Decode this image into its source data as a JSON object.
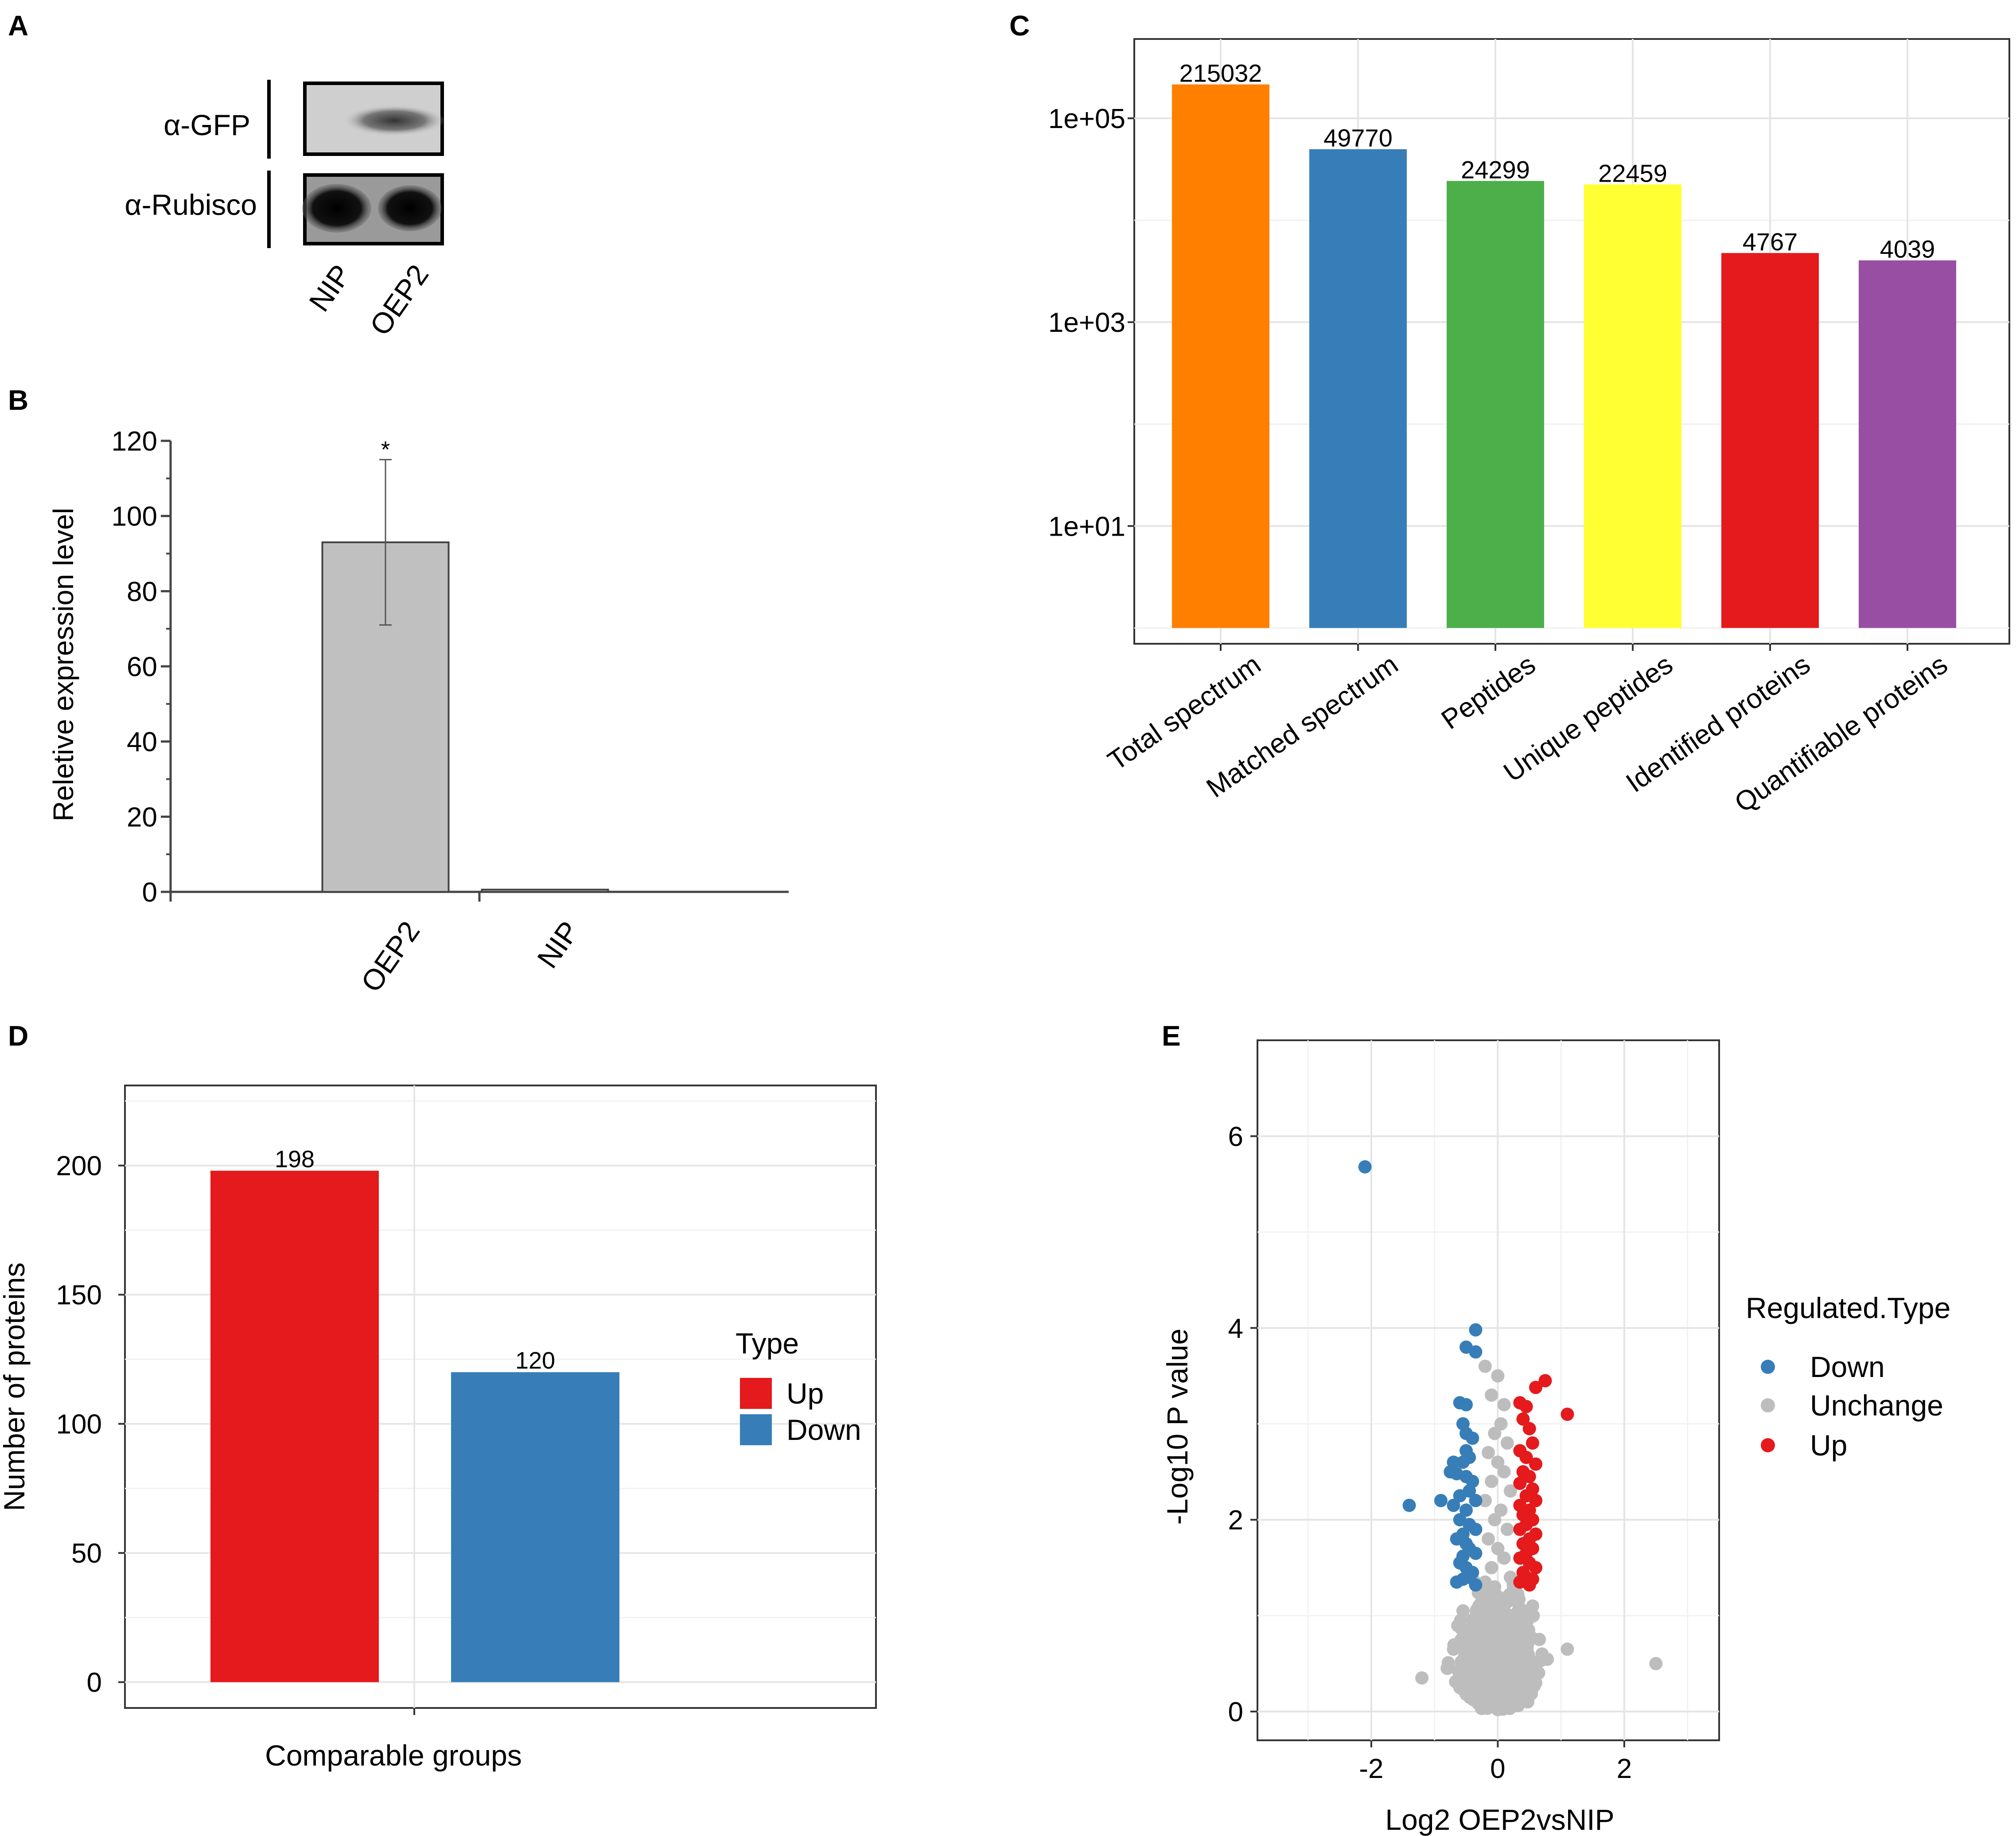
{
  "panel_labels": {
    "a": "A",
    "b": "B",
    "c": "C",
    "d": "D",
    "e": "E"
  },
  "colors": {
    "orange": "#ff7f00",
    "blue": "#377eb8",
    "green": "#4daf4a",
    "yellow": "#ffff33",
    "red": "#e41a1c",
    "purple": "#984ea3",
    "grey_bar": "#c0c0c0",
    "grey_point": "#bdbdbd"
  },
  "blot": {
    "rows": [
      "α-GFP",
      "α-Rubisco"
    ],
    "lanes": [
      "NIP",
      "OEP2"
    ]
  },
  "chart_data": [
    {
      "panel": "B",
      "type": "bar",
      "categories": [
        "OEP2",
        "NIP"
      ],
      "values": [
        93,
        0.6
      ],
      "error": [
        22,
        0
      ],
      "significance": [
        "*",
        ""
      ],
      "title": "",
      "xlabel": "",
      "ylabel": "Reletive expression level",
      "ylim": [
        0,
        120
      ],
      "yticks": [
        0,
        20,
        40,
        60,
        80,
        100,
        120
      ]
    },
    {
      "panel": "C",
      "type": "bar",
      "scale": "log10",
      "categories": [
        "Total spectrum",
        "Matched spectrum",
        "Peptides",
        "Unique peptides",
        "Identified proteins",
        "Quantifiable proteins"
      ],
      "values": [
        215032,
        49770,
        24299,
        22459,
        4767,
        4039
      ],
      "labels": [
        "215032",
        "49770",
        "24299",
        "22459",
        "4767",
        "4039"
      ],
      "colors": [
        "#ff7f00",
        "#377eb8",
        "#4daf4a",
        "#ffff33",
        "#e41a1c",
        "#984ea3"
      ],
      "yticks": [
        10,
        1000,
        100000
      ],
      "ytick_labels": [
        "1e+01",
        "1e+03",
        "1e+05"
      ],
      "ylim": [
        0.7,
        600000
      ],
      "bar_base": 1,
      "title": "",
      "xlabel": "",
      "ylabel": "",
      "grid": true
    },
    {
      "panel": "D",
      "type": "bar",
      "categories": [
        "Up",
        "Down"
      ],
      "values": [
        198,
        120
      ],
      "labels": [
        "198",
        "120"
      ],
      "colors": [
        "#e41a1c",
        "#377eb8"
      ],
      "xlabel": "Comparable groups",
      "ylabel": "Number of proteins",
      "ylim": [
        -10,
        231
      ],
      "yticks": [
        0,
        50,
        100,
        150,
        200
      ],
      "legend": {
        "title": "Type",
        "entries": [
          "Up",
          "Down"
        ],
        "placement": "right"
      },
      "grid": true
    },
    {
      "panel": "E",
      "type": "scatter",
      "xlabel": "Log2 OEP2vsNIP",
      "ylabel": "-Log10 P value",
      "xlim": [
        -3.8,
        3.5
      ],
      "ylim": [
        -0.3,
        7
      ],
      "xticks": [
        -2,
        0,
        2
      ],
      "yticks": [
        0,
        2,
        4,
        6
      ],
      "legend": {
        "title": "Regulated.Type",
        "entries": [
          "Down",
          "Unchange",
          "Up"
        ],
        "placement": "right"
      },
      "series": [
        {
          "name": "Down",
          "color": "#377eb8",
          "points": [
            [
              -2.1,
              5.68
            ],
            [
              -0.35,
              3.98
            ],
            [
              -0.5,
              3.8
            ],
            [
              -0.35,
              3.75
            ],
            [
              -0.6,
              3.22
            ],
            [
              -0.5,
              3.2
            ],
            [
              -0.55,
              3.0
            ],
            [
              -0.5,
              2.9
            ],
            [
              -0.4,
              2.85
            ],
            [
              -0.5,
              2.72
            ],
            [
              -0.45,
              2.65
            ],
            [
              -0.55,
              2.6
            ],
            [
              -0.7,
              2.6
            ],
            [
              -0.75,
              2.5
            ],
            [
              -0.65,
              2.48
            ],
            [
              -0.5,
              2.45
            ],
            [
              -0.4,
              2.4
            ],
            [
              -0.45,
              2.3
            ],
            [
              -0.6,
              2.25
            ],
            [
              -0.35,
              2.2
            ],
            [
              -1.4,
              2.15
            ],
            [
              -0.9,
              2.2
            ],
            [
              -0.7,
              2.15
            ],
            [
              -0.5,
              2.1
            ],
            [
              -0.6,
              2.0
            ],
            [
              -0.45,
              1.95
            ],
            [
              -0.35,
              1.9
            ],
            [
              -0.55,
              1.85
            ],
            [
              -0.65,
              1.8
            ],
            [
              -0.5,
              1.75
            ],
            [
              -0.45,
              1.7
            ],
            [
              -0.35,
              1.65
            ],
            [
              -0.55,
              1.62
            ],
            [
              -0.6,
              1.55
            ],
            [
              -0.5,
              1.5
            ],
            [
              -0.4,
              1.45
            ],
            [
              -0.45,
              1.4
            ],
            [
              -0.55,
              1.38
            ],
            [
              -0.65,
              1.35
            ],
            [
              -0.35,
              1.32
            ]
          ]
        },
        {
          "name": "Up",
          "color": "#e41a1c",
          "points": [
            [
              0.75,
              3.45
            ],
            [
              0.6,
              3.38
            ],
            [
              1.1,
              3.1
            ],
            [
              0.35,
              3.22
            ],
            [
              0.45,
              3.18
            ],
            [
              0.4,
              3.05
            ],
            [
              0.5,
              2.95
            ],
            [
              0.55,
              2.8
            ],
            [
              0.35,
              2.72
            ],
            [
              0.45,
              2.65
            ],
            [
              0.6,
              2.58
            ],
            [
              0.4,
              2.5
            ],
            [
              0.5,
              2.45
            ],
            [
              0.35,
              2.38
            ],
            [
              0.55,
              2.32
            ],
            [
              0.45,
              2.25
            ],
            [
              0.6,
              2.2
            ],
            [
              0.35,
              2.15
            ],
            [
              0.5,
              2.1
            ],
            [
              0.4,
              2.05
            ],
            [
              0.55,
              2.0
            ],
            [
              0.45,
              1.95
            ],
            [
              0.35,
              1.9
            ],
            [
              0.6,
              1.85
            ],
            [
              0.5,
              1.8
            ],
            [
              0.4,
              1.75
            ],
            [
              0.55,
              1.7
            ],
            [
              0.45,
              1.65
            ],
            [
              0.35,
              1.6
            ],
            [
              0.5,
              1.55
            ],
            [
              0.6,
              1.5
            ],
            [
              0.4,
              1.45
            ],
            [
              0.45,
              1.4
            ],
            [
              0.55,
              1.38
            ],
            [
              0.35,
              1.35
            ],
            [
              0.5,
              1.32
            ]
          ]
        },
        {
          "name": "Unchange",
          "color": "#bdbdbd",
          "points": [
            [
              0.0,
              3.5
            ],
            [
              -0.1,
              3.3
            ],
            [
              0.1,
              3.2
            ],
            [
              -0.2,
              3.6
            ],
            [
              0.05,
              3.0
            ],
            [
              -0.05,
              2.9
            ],
            [
              0.15,
              2.8
            ],
            [
              -0.15,
              2.7
            ],
            [
              0.0,
              2.6
            ],
            [
              0.1,
              2.5
            ],
            [
              -0.1,
              2.4
            ],
            [
              0.2,
              2.3
            ],
            [
              -0.2,
              2.2
            ],
            [
              0.05,
              2.1
            ],
            [
              -0.05,
              2.0
            ],
            [
              0.15,
              1.9
            ],
            [
              -0.15,
              1.8
            ],
            [
              0.0,
              1.7
            ],
            [
              0.1,
              1.6
            ],
            [
              -0.1,
              1.5
            ],
            [
              0.2,
              1.4
            ],
            [
              -0.2,
              1.35
            ],
            [
              0.25,
              1.3
            ],
            [
              -0.25,
              1.25
            ],
            [
              0.0,
              1.2
            ],
            [
              0.3,
              1.15
            ],
            [
              -0.3,
              1.1
            ],
            [
              0.1,
              1.05
            ],
            [
              -0.1,
              1.0
            ],
            [
              0.35,
              0.95
            ],
            [
              -0.35,
              0.9
            ],
            [
              0.2,
              0.85
            ],
            [
              -0.2,
              0.8
            ],
            [
              0.45,
              0.75
            ],
            [
              -0.45,
              0.7
            ],
            [
              0.3,
              0.65
            ],
            [
              -0.3,
              0.6
            ],
            [
              0.5,
              0.55
            ],
            [
              -0.5,
              0.5
            ],
            [
              0.0,
              0.45
            ],
            [
              0.4,
              0.4
            ],
            [
              -0.4,
              0.35
            ],
            [
              0.6,
              0.3
            ],
            [
              -0.6,
              0.25
            ],
            [
              0.1,
              0.2
            ],
            [
              -0.1,
              0.15
            ],
            [
              0.25,
              0.1
            ],
            [
              -0.25,
              0.05
            ],
            [
              0.0,
              0.02
            ],
            [
              0.15,
              0.9
            ],
            [
              -0.15,
              0.6
            ],
            [
              0.05,
              0.3
            ],
            [
              -0.05,
              1.3
            ],
            [
              0.35,
              0.2
            ],
            [
              -0.35,
              0.2
            ],
            [
              -0.8,
              0.45
            ],
            [
              -1.2,
              0.35
            ],
            [
              1.1,
              0.65
            ],
            [
              2.5,
              0.5
            ],
            [
              0.7,
              0.6
            ],
            [
              -0.7,
              0.65
            ],
            [
              0.55,
              1.1
            ],
            [
              -0.55,
              1.05
            ]
          ]
        }
      ]
    }
  ]
}
